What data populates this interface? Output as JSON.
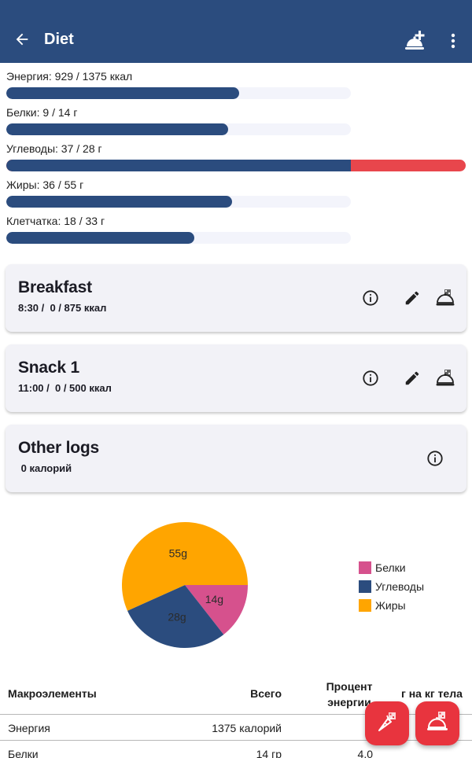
{
  "app_bar": {
    "title": "Diet",
    "back_icon": "arrow-left-icon",
    "add_meal_icon": "add-meal-icon",
    "more_icon": "more-vertical-icon",
    "color": "#2b4c7e"
  },
  "nutrients": [
    {
      "label": "Энергия: 929 / 1375 ккал",
      "fraction": 0.676,
      "over": false
    },
    {
      "label": "Белки: 9 / 14 г",
      "fraction": 0.643,
      "over": false
    },
    {
      "label": "Углеводы: 37 / 28 г",
      "fraction": 1.321,
      "over": true
    },
    {
      "label": "Жиры: 36 / 55 г",
      "fraction": 0.655,
      "over": false
    },
    {
      "label": "Клетчатка: 18 / 33 г",
      "fraction": 0.545,
      "over": false
    }
  ],
  "meals": [
    {
      "name": "Breakfast",
      "subtitle": "8:30 /  0 / 875 ккал"
    },
    {
      "name": "Snack 1",
      "subtitle": "11:00 /  0 / 500 ккал"
    },
    {
      "name": "Other logs",
      "subtitle": " 0 калорий"
    }
  ],
  "chart_data": {
    "type": "pie",
    "slices": [
      {
        "name": "Белки",
        "value": 14,
        "label": "14g",
        "color": "#d6518d"
      },
      {
        "name": "Углеводы",
        "value": 28,
        "label": "28g",
        "color": "#2b4c7e"
      },
      {
        "name": "Жиры",
        "value": 55,
        "label": "55g",
        "color": "#ffa500"
      }
    ],
    "legend": [
      "Белки",
      "Углеводы",
      "Жиры"
    ],
    "legend_position": "right"
  },
  "table": {
    "headers": [
      "Макроэлементы",
      "Всего",
      "Процент\nэнергии",
      "г на кг тела"
    ],
    "rows": [
      [
        "Энергия",
        "1375 калорий",
        "",
        ""
      ],
      [
        "Белки",
        "14 гр",
        "4.0",
        ""
      ]
    ]
  },
  "fabs": {
    "add_food_icon": "carrot-plus-icon",
    "add_meal_icon": "add-meal-icon",
    "color": "#e8343e"
  }
}
